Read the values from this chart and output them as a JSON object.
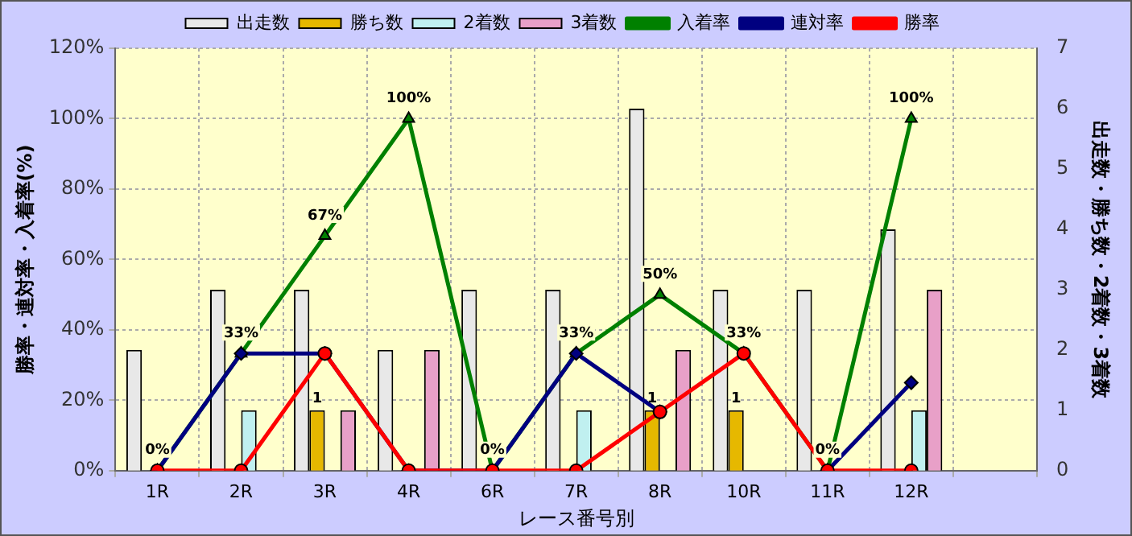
{
  "chart_data": {
    "type": "bar",
    "xlabel": "レース番号別",
    "ylabel": "勝率・連対率・入着率(%)",
    "y2label": "出走数・勝ち数・2着数・3着数",
    "categories": [
      "1R",
      "2R",
      "3R",
      "4R",
      "6R",
      "7R",
      "8R",
      "10R",
      "11R",
      "12R",
      null
    ],
    "series": [
      {
        "name": "出走数",
        "axis": "y2",
        "color": "#e8e8e8",
        "values": [
          2,
          3,
          3,
          2,
          3,
          3,
          6,
          3,
          3,
          4,
          null
        ]
      },
      {
        "name": "勝ち数",
        "axis": "y2",
        "color": "#e6b800",
        "values": [
          0,
          0,
          1,
          0,
          0,
          0,
          1,
          1,
          0,
          0,
          null
        ],
        "value_labels": [
          null,
          null,
          "1",
          null,
          null,
          null,
          "1",
          "1",
          null,
          null,
          null
        ]
      },
      {
        "name": "2着数",
        "axis": "y2",
        "color": "#c0f0f0",
        "values": [
          0,
          1,
          0,
          0,
          0,
          1,
          0,
          0,
          0,
          1,
          null
        ]
      },
      {
        "name": "3着数",
        "axis": "y2",
        "color": "#e8a0c8",
        "values": [
          0,
          0,
          1,
          2,
          0,
          0,
          2,
          0,
          0,
          3,
          null
        ]
      },
      {
        "name": "入着率",
        "type": "line",
        "color": "#008000",
        "marker": "triangle",
        "values": [
          0,
          33.3,
          66.7,
          100,
          0,
          33.3,
          50,
          33.3,
          0,
          100,
          null
        ],
        "value_labels": [
          "0%",
          "33%",
          "67%",
          "100%",
          "0%",
          "33%",
          "50%",
          "33%",
          "0%",
          "100%",
          null
        ]
      },
      {
        "name": "連対率",
        "type": "line",
        "color": "#000080",
        "marker": "diamond",
        "values": [
          0,
          33.3,
          33.3,
          0,
          0,
          33.3,
          16.7,
          null,
          0,
          25,
          null
        ]
      },
      {
        "name": "勝率",
        "type": "line",
        "color": "#ff0000",
        "marker": "circle",
        "values": [
          0,
          0,
          33.3,
          0,
          0,
          0,
          16.7,
          33.3,
          0,
          0,
          null
        ]
      }
    ],
    "ylim": [
      0,
      120
    ],
    "yticks": [
      {
        "value": 0,
        "label": "0%"
      },
      {
        "value": 20,
        "label": "20%"
      },
      {
        "value": 40,
        "label": "40%"
      },
      {
        "value": 60,
        "label": "60%"
      },
      {
        "value": 80,
        "label": "80%"
      },
      {
        "value": 100,
        "label": "100%"
      },
      {
        "value": 120,
        "label": "120%"
      }
    ],
    "y2lim": [
      0,
      7
    ],
    "y2ticks": [
      0,
      1,
      2,
      3,
      4,
      5,
      6,
      7
    ],
    "grid": true,
    "legend": "top",
    "line_style": "solid"
  }
}
